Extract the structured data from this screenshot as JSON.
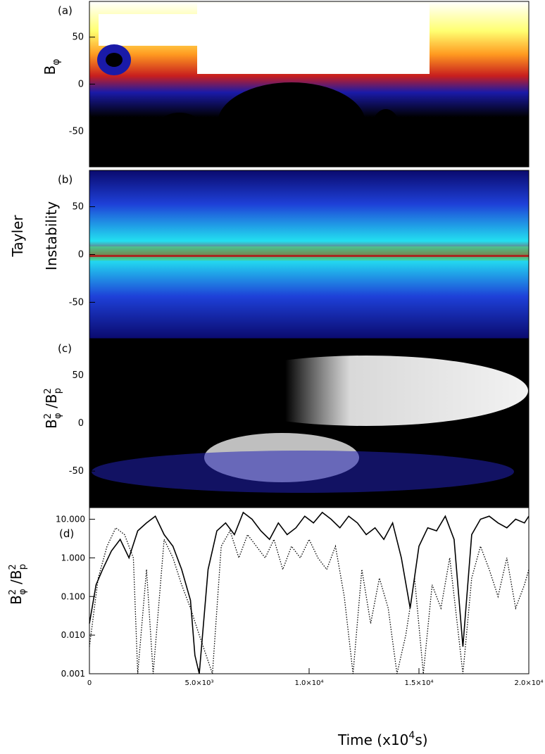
{
  "figure": {
    "x_axis_label": "Time (x10",
    "x_axis_label_sup": "4",
    "x_axis_label_end": "s)"
  },
  "chart_data": [
    {
      "type": "heatmap",
      "panel_tag": "(a)",
      "ylabel": "B",
      "ylabel_sub": "φ",
      "y_ticks": [
        "50",
        "0",
        "-50"
      ],
      "y_tick_values": [
        50,
        0,
        -50
      ],
      "ylim": [
        -88,
        88
      ],
      "xlim": [
        0,
        20000
      ],
      "colormap": "black-blue-red-yellow-white",
      "colors": [
        "#000000",
        "#1a1aa8",
        "#c81e1e",
        "#ff8c1a",
        "#ffff66",
        "#ffffff"
      ]
    },
    {
      "type": "heatmap",
      "panel_tag": "(b)",
      "ylabel_outer": "Tayler",
      "ylabel": "Instability",
      "y_ticks": [
        "50",
        "0",
        "-50"
      ],
      "y_tick_values": [
        50,
        0,
        -50
      ],
      "ylim": [
        -88,
        88
      ],
      "xlim": [
        0,
        20000
      ],
      "colormap": "navy-blue-cyan-green-yellow-red",
      "colors": [
        "#0a0a6e",
        "#1e5af0",
        "#22e0f0",
        "#3cf08c",
        "#f0e020",
        "#b41414"
      ]
    },
    {
      "type": "heatmap",
      "panel_tag": "(c)",
      "ylabel": "B",
      "ylabel_sup": "2",
      "ylabel_sub": "φ",
      "ylabel_mid": " /B",
      "ylabel_sup2": "2",
      "ylabel_sub2": "p",
      "y_ticks": [
        "50",
        "0",
        "-50"
      ],
      "y_tick_values": [
        50,
        0,
        -50
      ],
      "ylim": [
        -88,
        88
      ],
      "xlim": [
        0,
        20000
      ],
      "colormap": "black-blue-red-yellow-white",
      "colors": [
        "#000000",
        "#2020b4",
        "#b41e1e",
        "#ff9a2a",
        "#ffffb0",
        "#ffffff"
      ]
    },
    {
      "type": "line",
      "panel_tag": "(d)",
      "ylabel": "B",
      "ylabel_sup": "2",
      "ylabel_sub": "φ",
      "ylabel_mid": " /B",
      "ylabel_sup2": "2",
      "ylabel_sub2": "p",
      "y_scale": "log",
      "ylim": [
        0.001,
        20
      ],
      "y_ticks": [
        "10.000",
        "1.000",
        "0.100",
        "0.010",
        "0.001"
      ],
      "y_tick_values": [
        10,
        1,
        0.1,
        0.01,
        0.001
      ],
      "xlim": [
        0,
        20000
      ],
      "x_ticks": [
        "0",
        "5.0×10³",
        "1.0×10⁴",
        "1.5×10⁴",
        "2.0×10⁴"
      ],
      "x_tick_values": [
        0,
        5000,
        10000,
        15000,
        20000
      ],
      "series": [
        {
          "style": "solid",
          "x": [
            0,
            300,
            600,
            1000,
            1400,
            1800,
            2200,
            2600,
            3000,
            3400,
            3800,
            4200,
            4600,
            4800,
            5000,
            5400,
            5800,
            6200,
            6600,
            7000,
            7400,
            7800,
            8200,
            8600,
            9000,
            9400,
            9800,
            10200,
            10600,
            11000,
            11400,
            11800,
            12200,
            12600,
            13000,
            13400,
            13800,
            14200,
            14600,
            15000,
            15400,
            15800,
            16200,
            16600,
            17000,
            17400,
            17800,
            18200,
            18600,
            19000,
            19400,
            19800,
            20000
          ],
          "y": [
            0.02,
            0.2,
            0.5,
            1.5,
            3,
            1,
            5,
            8,
            12,
            4,
            2,
            0.5,
            0.08,
            0.003,
            0.001,
            0.5,
            5,
            8,
            4,
            15,
            10,
            5,
            3,
            8,
            4,
            6,
            12,
            8,
            15,
            10,
            6,
            12,
            8,
            4,
            6,
            3,
            8,
            1,
            0.05,
            2,
            6,
            5,
            12,
            3,
            0.005,
            4,
            10,
            12,
            8,
            6,
            10,
            8,
            12
          ]
        },
        {
          "style": "dotted",
          "x": [
            0,
            400,
            800,
            1200,
            1600,
            2000,
            2200,
            2600,
            2900,
            3400,
            3800,
            4200,
            4600,
            5000,
            5600,
            6000,
            6400,
            6800,
            7200,
            7600,
            8000,
            8400,
            8800,
            9200,
            9600,
            10000,
            10400,
            10800,
            11200,
            11600,
            12000,
            12400,
            12800,
            13200,
            13600,
            14000,
            14400,
            14800,
            15200,
            15600,
            16000,
            16400,
            16800,
            17000,
            17400,
            17800,
            18200,
            18600,
            19000,
            19400,
            19800,
            20000
          ],
          "y": [
            0.005,
            0.3,
            2,
            6,
            4,
            1,
            0.001,
            0.5,
            0.001,
            3,
            1,
            0.2,
            0.05,
            0.01,
            0.001,
            2,
            5,
            1,
            4,
            2,
            1,
            3,
            0.5,
            2,
            1,
            3,
            1,
            0.5,
            2,
            0.1,
            0.001,
            0.5,
            0.02,
            0.3,
            0.05,
            0.001,
            0.01,
            0.3,
            0.001,
            0.2,
            0.05,
            1,
            0.01,
            0.001,
            0.3,
            2,
            0.5,
            0.1,
            1,
            0.05,
            0.2,
            0.5
          ]
        }
      ]
    }
  ]
}
